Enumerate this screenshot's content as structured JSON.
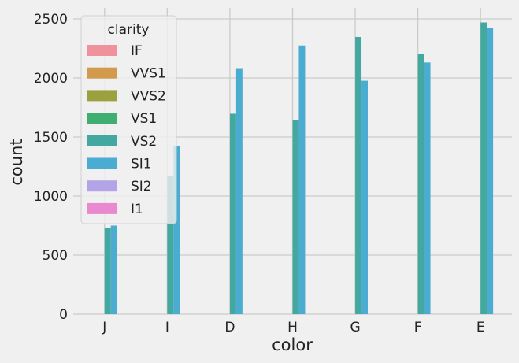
{
  "chart_data": {
    "type": "bar",
    "xlabel": "color",
    "ylabel": "count",
    "categories": [
      "J",
      "I",
      "D",
      "H",
      "G",
      "F",
      "E"
    ],
    "ylim": [
      0,
      2500
    ],
    "yticks": [
      0,
      500,
      1000,
      1500,
      2000,
      2500
    ],
    "grid": true,
    "legend": {
      "title": "clarity",
      "placement": "top-left"
    },
    "series": [
      {
        "name": "IF",
        "color": "#f0929e",
        "values": [
          null,
          null,
          null,
          null,
          null,
          null,
          null
        ]
      },
      {
        "name": "VVS1",
        "color": "#d29a4c",
        "values": [
          null,
          null,
          null,
          null,
          null,
          null,
          null
        ]
      },
      {
        "name": "VVS2",
        "color": "#9aa23f",
        "values": [
          null,
          null,
          null,
          null,
          null,
          null,
          null
        ]
      },
      {
        "name": "VS1",
        "color": "#3fae70",
        "values": [
          null,
          null,
          null,
          null,
          null,
          null,
          null
        ]
      },
      {
        "name": "VS2",
        "color": "#43a8a0",
        "values": [
          731,
          1169,
          1697,
          1643,
          2347,
          2201,
          2470
        ]
      },
      {
        "name": "SI1",
        "color": "#49acd0",
        "values": [
          750,
          1424,
          2083,
          2275,
          1976,
          2131,
          2426
        ]
      },
      {
        "name": "SI2",
        "color": "#b3a4e8",
        "values": [
          null,
          null,
          null,
          null,
          null,
          null,
          null
        ]
      },
      {
        "name": "I1",
        "color": "#e98ad1",
        "values": [
          null,
          null,
          null,
          null,
          null,
          null,
          null
        ]
      }
    ]
  }
}
